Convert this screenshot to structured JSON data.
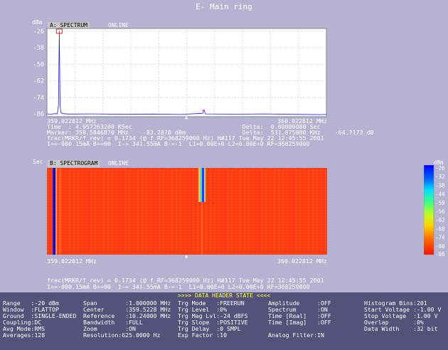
{
  "window": {
    "title": "E- Main ring"
  },
  "spectrum": {
    "tab_label": "A: SPECTRUM",
    "status": "ONLINE",
    "unit": "dBm",
    "xmin_label": "359.022812 MHz",
    "xmax_label": "360.022812 MHz",
    "info_lines": [
      "Time  : 4.957263200 KSec                               Delta:  0.00000000 Sec",
      "Marker: 359.5846870 MHz    -83.2878 dBm                Delta:  531.875000 KHz    -64.7173 dB",
      "frac(MRKR/f_rev) = 0.1734 (@ f_RF=368259000 Hz) H#117 Tue May 22 12:45:55 2001",
      "I+=-000.15mA B+=00  I-= 341.55mA B-=-1  L1=0.00E+0 L2=0.00E+0 RF=368259000"
    ]
  },
  "chart_data": {
    "type": "line",
    "title": "",
    "ylabel": "dBm",
    "yticks": [
      -26,
      -38,
      -50,
      -62,
      -74,
      -86
    ],
    "ylim": [
      -88,
      -24
    ],
    "xlim": [
      359.022812,
      360.022812
    ],
    "xtick_labels": [
      "359.022812 MHz",
      "360.022812 MHz"
    ],
    "grid": true,
    "series": [
      {
        "x": [
          359.022812,
          359.04,
          359.05,
          359.06,
          359.064,
          359.067,
          359.07,
          359.073,
          359.08,
          359.1,
          359.2,
          359.3,
          359.4,
          359.5,
          359.58,
          359.585,
          359.59,
          359.7,
          359.8,
          359.9,
          360.0,
          360.022812
        ],
        "values": [
          -86,
          -86.2,
          -85.8,
          -86.0,
          -80,
          -26,
          -80,
          -85,
          -85.8,
          -86.1,
          -86.0,
          -86.3,
          -86.1,
          -86.4,
          -85.5,
          -83.3,
          -86.0,
          -86.2,
          -86.0,
          -86.3,
          -86.5,
          -86.4
        ]
      }
    ],
    "marker": {
      "x": 359.584687,
      "y": -83.2878
    }
  },
  "spectrogram": {
    "tab_label": "B: SPECTROGRAM",
    "status": "ONLINE",
    "axis_label": "Sec",
    "xmin_label": "359.022812 MHz",
    "xmax_label": "360.022812 MHz",
    "info_lines": [
      "frac(MRKR/f_rev) = 0.1734 (@ f_RF=368259000 Hz) H#117 Tue May 22 12:45:55 2001",
      "I+=-000.15mA B+=00  I-= 341.55mA B-=-1  L1=0.00E+0 L2=0.00E+0 RF=368259000"
    ]
  },
  "colorbar": {
    "unit": "dBm",
    "ticks": [
      "-26",
      "-32",
      "-38",
      "-44",
      "-50",
      "-56",
      "-62",
      "-68",
      "-74",
      "-80",
      "-86"
    ]
  },
  "footer": {
    "title": ">>>> DATA HEADER STATE <<<<",
    "col1": [
      "Range   :-20 dBm",
      "Window  :FLATTOP",
      "Ground  :SINGLE-ENDED",
      "Coupling:DC",
      "Avg Mode:RMS",
      "Averages:128"
    ],
    "col2": [
      "Span        :1.000000 MHz",
      "Center      :359.5228 MHz",
      "Reference   :10.24000 MHz",
      "Bandwidth   :FULL",
      "Zoom        :ON",
      "Resolution:625.0000 Hz"
    ],
    "col3": [
      "Trg Mode   :FREERUN",
      "Trg Level  :0%",
      "Trg Mag Lvl:-24 dBFS",
      "Trg Slope  :POSITIVE",
      "Trg Delay  :0 SMPL",
      "Exp Factor :10"
    ],
    "col4": [
      "Amplitude     :OFF",
      "Spectrum      :ON",
      "Time [Real]   :OFF",
      "Time [Imag]   :OFF",
      "",
      "Analog Filter:IN"
    ],
    "col5": [
      "Histogram Bins:201",
      "Start Voltage :-1.00 V",
      "Stop Voltage  :1.00 V",
      "Overlap       :0%",
      "Data Width    :32 bit",
      ""
    ]
  }
}
